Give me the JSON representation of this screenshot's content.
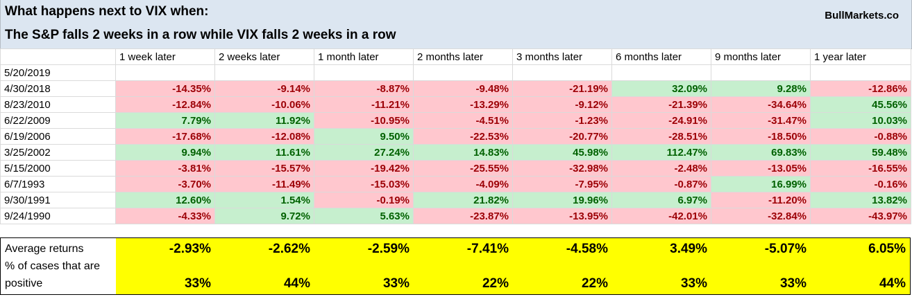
{
  "title_line1": "What happens next to VIX when:",
  "title_line2": "The S&P falls 2 weeks in a row while VIX falls 2 weeks in a row",
  "brand": "BullMarkets.co",
  "columns": [
    "1 week later",
    "2 weeks later",
    "1 month later",
    "2 months later",
    "3 months later",
    "6 months later",
    "9 months later",
    "1 year later"
  ],
  "current_date": "5/20/2019",
  "rows": [
    {
      "date": "4/30/2018",
      "values": [
        "-14.35%",
        "-9.14%",
        "-8.87%",
        "-9.48%",
        "-21.19%",
        "32.09%",
        "9.28%",
        "-12.86%"
      ]
    },
    {
      "date": "8/23/2010",
      "values": [
        "-12.84%",
        "-10.06%",
        "-11.21%",
        "-13.29%",
        "-9.12%",
        "-21.39%",
        "-34.64%",
        "45.56%"
      ]
    },
    {
      "date": "6/22/2009",
      "values": [
        "7.79%",
        "11.92%",
        "-10.95%",
        "-4.51%",
        "-1.23%",
        "-24.91%",
        "-31.47%",
        "10.03%"
      ]
    },
    {
      "date": "6/19/2006",
      "values": [
        "-17.68%",
        "-12.08%",
        "9.50%",
        "-22.53%",
        "-20.77%",
        "-28.51%",
        "-18.50%",
        "-0.88%"
      ]
    },
    {
      "date": "3/25/2002",
      "values": [
        "9.94%",
        "11.61%",
        "27.24%",
        "14.83%",
        "45.98%",
        "112.47%",
        "69.83%",
        "59.48%"
      ]
    },
    {
      "date": "5/15/2000",
      "values": [
        "-3.81%",
        "-15.57%",
        "-19.42%",
        "-25.55%",
        "-32.98%",
        "-2.48%",
        "-13.05%",
        "-16.55%"
      ]
    },
    {
      "date": "6/7/1993",
      "values": [
        "-3.70%",
        "-11.49%",
        "-15.03%",
        "-4.09%",
        "-7.95%",
        "-0.87%",
        "16.99%",
        "-0.16%"
      ]
    },
    {
      "date": "9/30/1991",
      "values": [
        "12.60%",
        "1.54%",
        "-0.19%",
        "21.82%",
        "19.96%",
        "6.97%",
        "-11.20%",
        "13.82%"
      ]
    },
    {
      "date": "9/24/1990",
      "values": [
        "-4.33%",
        "9.72%",
        "5.63%",
        "-23.87%",
        "-13.95%",
        "-42.01%",
        "-32.84%",
        "-43.97%"
      ]
    }
  ],
  "summary": {
    "avg_label": "Average returns",
    "avg_values": [
      "-2.93%",
      "-2.62%",
      "-2.59%",
      "-7.41%",
      "-4.58%",
      "3.49%",
      "-5.07%",
      "6.05%"
    ],
    "pct_label_line1": "% of cases that are",
    "pct_label_line2": "positive",
    "pct_values": [
      "33%",
      "44%",
      "33%",
      "22%",
      "22%",
      "33%",
      "33%",
      "44%"
    ]
  },
  "colors": {
    "header_bg": "#dce6f1",
    "positive_bg": "#c6efce",
    "positive_text": "#006100",
    "negative_bg": "#ffc7ce",
    "negative_text": "#9c0006",
    "summary_bg": "#ffff00"
  }
}
